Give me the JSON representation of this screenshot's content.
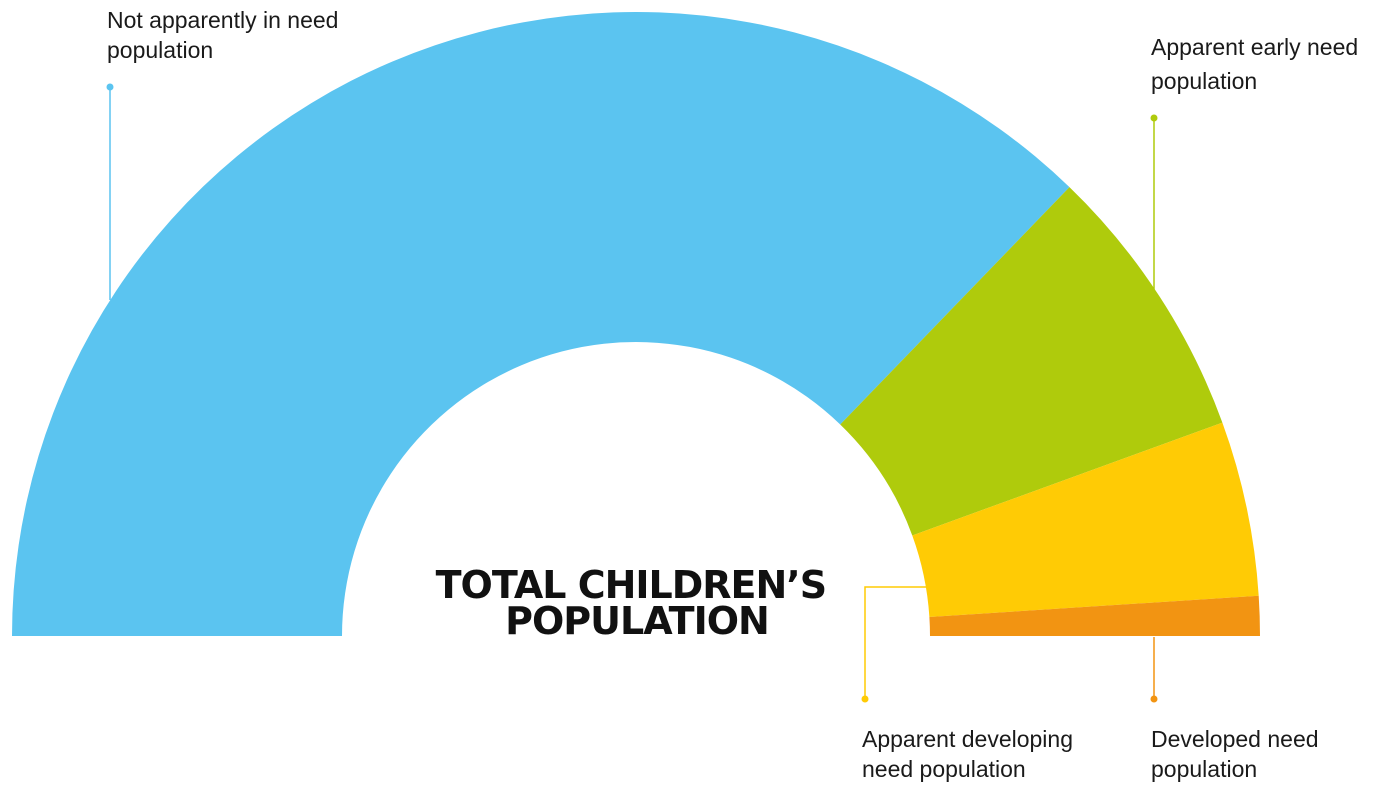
{
  "center_title": {
    "line1": "TOTAL CHILDREN’S",
    "line2": "POPULATION"
  },
  "segments": [
    {
      "id": "not-apparently-in-need",
      "label_line1": "Not apparently in need",
      "label_line2": "population",
      "color": "#5BC4F0",
      "start_deg": 0,
      "end_deg": 134
    },
    {
      "id": "apparent-early-need",
      "label_line1": "Apparent early need",
      "label_line2": "population",
      "color": "#AFCB0C",
      "start_deg": 134,
      "end_deg": 160
    },
    {
      "id": "apparent-developing-need",
      "label_line1": "Apparent developing",
      "label_line2": "need population",
      "color": "#FFCB05",
      "start_deg": 160,
      "end_deg": 176.3
    },
    {
      "id": "developed-need",
      "label_line1": "Developed need",
      "label_line2": "population",
      "color": "#F29412",
      "start_deg": 176.3,
      "end_deg": 180
    }
  ]
}
